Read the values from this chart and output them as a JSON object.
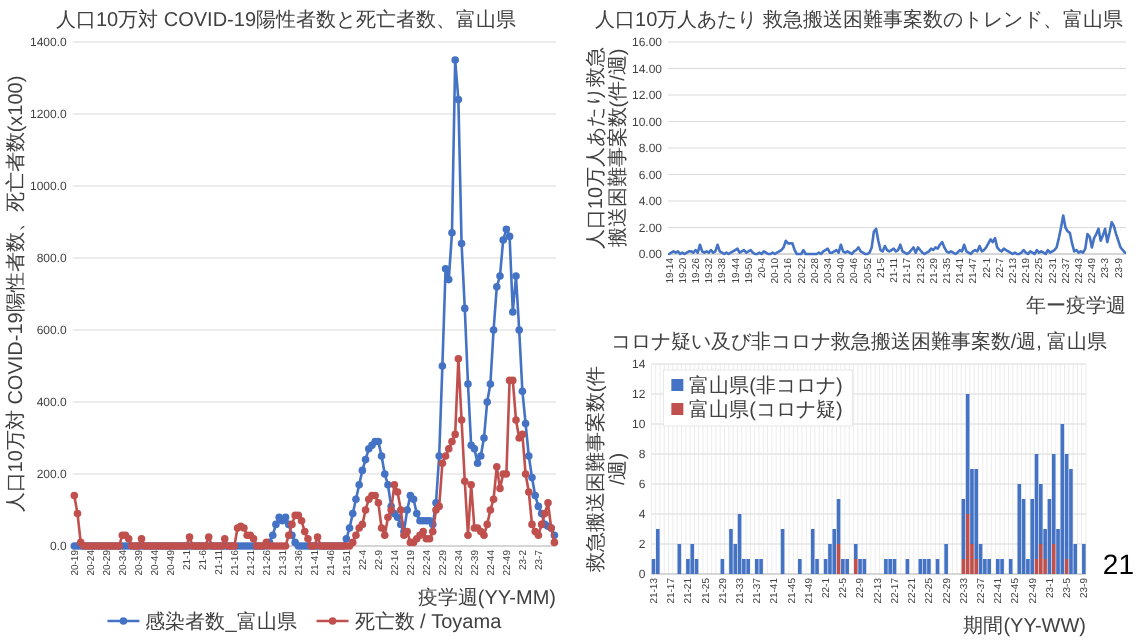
{
  "chart_data": [
    {
      "type": "line",
      "title": "人口10万対 COVID-19陽性者数と死亡者数、富山県",
      "ylabel": "人口10万対 COVID-19陽性者数、死亡者数(x100)",
      "xlabel": "疫学週(YY-MM)",
      "categories": [
        "20-19",
        null,
        null,
        null,
        null,
        "20-24",
        null,
        null,
        null,
        null,
        "20-29",
        null,
        null,
        null,
        null,
        "20-34",
        null,
        null,
        null,
        null,
        "20-39",
        null,
        null,
        null,
        null,
        "20-44",
        null,
        null,
        null,
        null,
        "20-49",
        null,
        null,
        null,
        null,
        "21-1",
        null,
        null,
        null,
        null,
        "21-6",
        null,
        null,
        null,
        null,
        "21-11",
        null,
        null,
        null,
        null,
        "21-16",
        null,
        null,
        null,
        null,
        "21-21",
        null,
        null,
        null,
        null,
        "21-26",
        null,
        null,
        null,
        null,
        "21-31",
        null,
        null,
        null,
        null,
        "21-36",
        null,
        null,
        null,
        null,
        "21-41",
        null,
        null,
        null,
        null,
        "21-46",
        null,
        null,
        null,
        null,
        "21-51",
        null,
        null,
        null,
        null,
        "22-4",
        null,
        null,
        null,
        null,
        "22-9",
        null,
        null,
        null,
        null,
        "22-14",
        null,
        null,
        null,
        null,
        "22-19",
        null,
        null,
        null,
        null,
        "22-24",
        null,
        null,
        null,
        null,
        "22-29",
        null,
        null,
        null,
        null,
        "22-34",
        null,
        null,
        null,
        null,
        "22-39",
        null,
        null,
        null,
        null,
        "22-44",
        null,
        null,
        null,
        null,
        "22-49",
        null,
        null,
        null,
        null,
        "23-2",
        null,
        null,
        null,
        null,
        "23-7",
        null,
        null,
        null,
        null,
        null
      ],
      "series": [
        {
          "name": "感染者数_富山県",
          "color": "#4472c4",
          "values": [
            0,
            0,
            0,
            0,
            0,
            0,
            0,
            0,
            0,
            0,
            0,
            0,
            0,
            0,
            0,
            0,
            0,
            0,
            0,
            0,
            0,
            0,
            0,
            0,
            0,
            0,
            0,
            0,
            0,
            0,
            0,
            0,
            0,
            0,
            0,
            0,
            0,
            0,
            0,
            0,
            0,
            0,
            0,
            0,
            0,
            0,
            0,
            0,
            0,
            0,
            0,
            0,
            0,
            0,
            0,
            0,
            0,
            0,
            0,
            0,
            0,
            10,
            30,
            60,
            80,
            70,
            80,
            60,
            30,
            10,
            0,
            0,
            0,
            0,
            0,
            0,
            0,
            0,
            0,
            0,
            0,
            0,
            0,
            0,
            0,
            20,
            50,
            90,
            130,
            170,
            210,
            240,
            270,
            280,
            290,
            290,
            250,
            200,
            170,
            110,
            90,
            80,
            60,
            40,
            100,
            140,
            130,
            90,
            70,
            70,
            70,
            70,
            60,
            120,
            250,
            500,
            770,
            740,
            870,
            1350,
            1240,
            840,
            660,
            450,
            280,
            270,
            230,
            250,
            300,
            400,
            450,
            600,
            720,
            750,
            850,
            880,
            860,
            650,
            750,
            600,
            430,
            340,
            250,
            190,
            140,
            110,
            90,
            60,
            55,
            50,
            30
          ]
        },
        {
          "name": "死亡数 / Toyama",
          "color": "#c0504d",
          "values": [
            140,
            90,
            10,
            0,
            0,
            0,
            0,
            0,
            0,
            0,
            0,
            0,
            0,
            0,
            0,
            30,
            30,
            20,
            0,
            0,
            0,
            20,
            0,
            0,
            0,
            0,
            0,
            0,
            0,
            0,
            0,
            0,
            0,
            0,
            0,
            0,
            25,
            0,
            0,
            0,
            0,
            0,
            25,
            0,
            0,
            0,
            0,
            20,
            0,
            0,
            0,
            50,
            55,
            50,
            30,
            30,
            20,
            0,
            0,
            0,
            10,
            0,
            0,
            0,
            0,
            0,
            0,
            30,
            60,
            85,
            85,
            70,
            40,
            20,
            0,
            0,
            25,
            0,
            0,
            0,
            0,
            0,
            0,
            0,
            0,
            0,
            0,
            10,
            30,
            50,
            60,
            100,
            130,
            140,
            140,
            120,
            50,
            30,
            80,
            100,
            170,
            150,
            100,
            30,
            40,
            10,
            10,
            20,
            30,
            40,
            20,
            20,
            40,
            100,
            110,
            230,
            250,
            270,
            290,
            310,
            520,
            350,
            180,
            30,
            170,
            50,
            50,
            40,
            30,
            60,
            100,
            130,
            220,
            160,
            200,
            200,
            460,
            460,
            350,
            300,
            310,
            200,
            150,
            60,
            40,
            30,
            60,
            90,
            120,
            50,
            10
          ]
        }
      ],
      "ylim": [
        0,
        1400
      ],
      "yticks": [
        {
          "value": 0,
          "label": "0.0"
        },
        {
          "value": 200,
          "label": "200.0"
        },
        {
          "value": 400,
          "label": "400.0"
        },
        {
          "value": 600,
          "label": "600.0"
        },
        {
          "value": 800,
          "label": "800.0"
        },
        {
          "value": 1000,
          "label": "1000.0"
        },
        {
          "value": 1200,
          "label": "1200.0"
        },
        {
          "value": 1400,
          "label": "1400.0"
        }
      ],
      "grid": "y",
      "legend": "bottom",
      "marker": "circle"
    },
    {
      "type": "line",
      "title": "人口10万人あたり 救急搬送困難事案数のトレンド、富山県",
      "ylabel": "人口10万人あたり救急搬送困難事案数(件/週)",
      "xlabel": "年ー疫学週",
      "categories": [
        "19-14",
        null,
        null,
        null,
        null,
        null,
        "19-20",
        null,
        null,
        null,
        null,
        null,
        "19-26",
        null,
        null,
        null,
        null,
        null,
        "19-32",
        null,
        null,
        null,
        null,
        null,
        "19-38",
        null,
        null,
        null,
        null,
        null,
        "19-44",
        null,
        null,
        null,
        null,
        null,
        "19-50",
        null,
        null,
        null,
        null,
        null,
        "20-4",
        null,
        null,
        null,
        null,
        null,
        "20-10",
        null,
        null,
        null,
        null,
        null,
        "20-16",
        null,
        null,
        null,
        null,
        null,
        "20-22",
        null,
        null,
        null,
        null,
        null,
        "20-28",
        null,
        null,
        null,
        null,
        null,
        "20-34",
        null,
        null,
        null,
        null,
        null,
        "20-40",
        null,
        null,
        null,
        null,
        null,
        "20-46",
        null,
        null,
        null,
        null,
        null,
        "20-52",
        null,
        null,
        null,
        null,
        null,
        "21-5",
        null,
        null,
        null,
        null,
        null,
        "21-11",
        null,
        null,
        null,
        null,
        null,
        "21-17",
        null,
        null,
        null,
        null,
        null,
        "21-23",
        null,
        null,
        null,
        null,
        null,
        "21-29",
        null,
        null,
        null,
        null,
        null,
        "21-35",
        null,
        null,
        null,
        null,
        null,
        "21-41",
        null,
        null,
        null,
        null,
        null,
        "21-47",
        null,
        null,
        null,
        null,
        null,
        "22-1",
        null,
        null,
        null,
        null,
        null,
        "22-7",
        null,
        null,
        null,
        null,
        null,
        "22-13",
        null,
        null,
        null,
        null,
        null,
        "22-19",
        null,
        null,
        null,
        null,
        null,
        "22-25",
        null,
        null,
        null,
        null,
        null,
        "22-31",
        null,
        null,
        null,
        null,
        null,
        "22-37",
        null,
        null,
        null,
        null,
        null,
        "22-43",
        null,
        null,
        null,
        null,
        null,
        "22-49",
        null,
        null,
        null,
        null,
        null,
        "23-3",
        null,
        null,
        null,
        null,
        null,
        "23-9",
        null,
        null,
        null
      ],
      "series": [
        {
          "color": "#4472c4",
          "values": [
            0.0,
            0.1,
            0.2,
            0.1,
            0.2,
            0.0,
            0.1,
            0.0,
            0.1,
            0.2,
            0.2,
            0.1,
            0.3,
            0.1,
            0.7,
            0.2,
            0.1,
            0.2,
            0.1,
            0.3,
            0.1,
            0.2,
            0.7,
            0.2,
            0.1,
            0.0,
            0.1,
            0.0,
            0.1,
            0.2,
            0.3,
            0.4,
            0.1,
            0.2,
            0.3,
            0.1,
            0.2,
            0.3,
            0.1,
            0.0,
            0.0,
            0.1,
            0.0,
            0.2,
            0.1,
            0.0,
            0.0,
            0.1,
            0.0,
            0.1,
            0.2,
            0.3,
            0.5,
            1.0,
            0.8,
            0.8,
            0.8,
            0.3,
            0.0,
            0.0,
            0.0,
            0.3,
            0.0,
            0.0,
            0.0,
            0.0,
            0.0,
            0.0,
            0.1,
            0.0,
            0.2,
            0.3,
            0.4,
            0.1,
            0.1,
            0.2,
            0.3,
            0.1,
            0.7,
            0.2,
            0.1,
            0.2,
            0.1,
            0.0,
            0.2,
            0.3,
            0.5,
            0.2,
            0.1,
            0.0,
            0.0,
            0.1,
            0.5,
            1.7,
            1.9,
            1.0,
            0.3,
            0.2,
            0.6,
            0.3,
            0.2,
            0.3,
            0.4,
            0.2,
            0.3,
            0.7,
            0.2,
            0.1,
            0.0,
            0.1,
            0.3,
            0.5,
            0.1,
            0.5,
            0.3,
            0.1,
            0.0,
            0.1,
            0.2,
            0.4,
            0.3,
            0.5,
            0.4,
            0.7,
            0.9,
            0.5,
            0.2,
            0.1,
            0.2,
            0.1,
            0.0,
            0.1,
            0.3,
            0.2,
            0.7,
            0.2,
            0.1,
            0.0,
            0.2,
            0.3,
            0.2,
            0.6,
            0.2,
            0.3,
            0.5,
            0.8,
            1.1,
            0.9,
            1.2,
            0.5,
            0.3,
            0.2,
            0.4,
            0.3,
            0.2,
            0.1,
            0.0,
            0.1,
            0.0,
            0.0,
            0.1,
            0.3,
            0.1,
            0.0,
            0.2,
            0.1,
            0.0,
            0.3,
            0.1,
            0.2,
            0.1,
            0.0,
            0.3,
            0.1,
            0.2,
            0.3,
            0.5,
            1.2,
            2.0,
            2.9,
            2.0,
            1.7,
            1.6,
            0.8,
            0.2,
            0.3,
            0.1,
            0.2,
            0.1,
            0.4,
            1.5,
            1.3,
            0.5,
            1.2,
            1.5,
            1.9,
            1.0,
            1.4,
            1.9,
            0.9,
            1.6,
            2.4,
            2.1,
            1.5,
            1.0,
            0.5,
            0.3,
            0.1
          ]
        }
      ],
      "ylim": [
        0,
        16
      ],
      "yticks": [
        {
          "value": 0,
          "label": "0.00"
        },
        {
          "value": 2,
          "label": "2.00"
        },
        {
          "value": 4,
          "label": "4.00"
        },
        {
          "value": 6,
          "label": "6.00"
        },
        {
          "value": 8,
          "label": "8.00"
        },
        {
          "value": 10,
          "label": "10.00"
        },
        {
          "value": 12,
          "label": "12.00"
        },
        {
          "value": 14,
          "label": "14.00"
        },
        {
          "value": 16,
          "label": "16.00"
        }
      ],
      "grid": "y"
    },
    {
      "type": "bar",
      "stacked": true,
      "title": "コロナ疑い及び非コロナ救急搬送困難事案数/週, 富山県",
      "ylabel": "救急搬送困難事案数(件/週)",
      "xlabel": "期間(YY-WW)",
      "annotations": [
        "21"
      ],
      "categories": [
        "21-13",
        null,
        null,
        null,
        "21-17",
        null,
        null,
        null,
        "21-21",
        null,
        null,
        null,
        "21-25",
        null,
        null,
        null,
        "21-29",
        null,
        null,
        null,
        "21-33",
        null,
        null,
        null,
        "21-37",
        null,
        null,
        null,
        "21-41",
        null,
        null,
        null,
        "21-45",
        null,
        null,
        null,
        "21-49",
        null,
        null,
        null,
        "22-1",
        null,
        null,
        null,
        "22-5",
        null,
        null,
        null,
        "22-9",
        null,
        null,
        null,
        "22-13",
        null,
        null,
        null,
        "22-17",
        null,
        null,
        null,
        "22-21",
        null,
        null,
        null,
        "22-25",
        null,
        null,
        null,
        "22-29",
        null,
        null,
        null,
        "22-33",
        null,
        null,
        null,
        "22-37",
        null,
        null,
        null,
        "22-41",
        null,
        null,
        null,
        "22-45",
        null,
        null,
        null,
        "22-49",
        null,
        null,
        null,
        "23-1",
        null,
        null,
        null,
        "23-5",
        null,
        null,
        null,
        "23-9"
      ],
      "series": [
        {
          "name": "富山県(コロナ疑)",
          "color": "#c0504d",
          "values": [
            0,
            0,
            0,
            0,
            0,
            0,
            0,
            0,
            0,
            0,
            0,
            0,
            0,
            0,
            0,
            0,
            0,
            0,
            0,
            0,
            0,
            0,
            0,
            0,
            0,
            0,
            0,
            0,
            0,
            0,
            0,
            0,
            0,
            0,
            0,
            0,
            0,
            0,
            0,
            0,
            0,
            0,
            0,
            2,
            0,
            0,
            0,
            1,
            0,
            0,
            0,
            0,
            0,
            0,
            0,
            0,
            0,
            0,
            0,
            0,
            0,
            0,
            0,
            0,
            0,
            0,
            0,
            0,
            0,
            0,
            0,
            0,
            1,
            4,
            2,
            1,
            0,
            0,
            0,
            0,
            0,
            0,
            0,
            0,
            0,
            0,
            0,
            0,
            0,
            1,
            2,
            1,
            0,
            2,
            0,
            0,
            1,
            0,
            0,
            0,
            0
          ]
        },
        {
          "name": "富山県(非コロナ)",
          "color": "#4472c4",
          "values": [
            1,
            3,
            0,
            0,
            0,
            0,
            2,
            0,
            1,
            2,
            1,
            0,
            0,
            0,
            0,
            0,
            1,
            0,
            3,
            2,
            4,
            1,
            1,
            0,
            1,
            1,
            0,
            0,
            0,
            0,
            3,
            0,
            0,
            0,
            1,
            0,
            0,
            3,
            1,
            0,
            1,
            2,
            3,
            3,
            1,
            1,
            0,
            1,
            1,
            1,
            0,
            0,
            0,
            0,
            1,
            1,
            1,
            0,
            0,
            1,
            0,
            0,
            1,
            1,
            1,
            0,
            1,
            0,
            2,
            0,
            0,
            0,
            4,
            8,
            5,
            6,
            2,
            1,
            1,
            0,
            1,
            1,
            0,
            1,
            0,
            6,
            5,
            1,
            5,
            7,
            4,
            2,
            5,
            6,
            3,
            10,
            7,
            7,
            2,
            0,
            2
          ]
        }
      ],
      "ylim": [
        0,
        14
      ],
      "yticks": [
        0,
        2,
        4,
        6,
        8,
        10,
        12,
        14
      ],
      "grid": true,
      "legend": "top left"
    }
  ]
}
